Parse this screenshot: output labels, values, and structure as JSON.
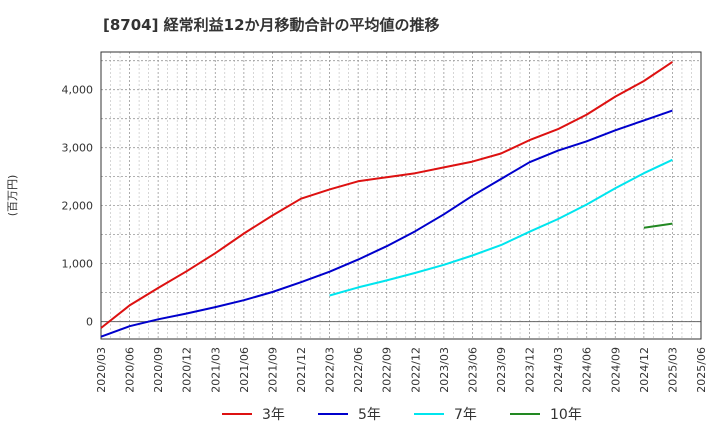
{
  "chart_data": {
    "type": "line",
    "title": "[8704]  経常利益12か月移動合計の平均値の推移",
    "ylabel": "(百万円)",
    "xlabel": "",
    "ylim": [
      -300,
      4650
    ],
    "yticks": [
      0,
      1000,
      2000,
      3000,
      4000
    ],
    "ytick_labels": [
      "0",
      "1,000",
      "2,000",
      "3,000",
      "4,000"
    ],
    "x": [
      "2020/03",
      "2020/06",
      "2020/09",
      "2020/12",
      "2021/03",
      "2021/06",
      "2021/09",
      "2021/12",
      "2022/03",
      "2022/06",
      "2022/09",
      "2022/12",
      "2023/03",
      "2023/06",
      "2023/09",
      "2023/12",
      "2024/03",
      "2024/06",
      "2024/09",
      "2024/12",
      "2025/03",
      "2025/06"
    ],
    "grid": true,
    "legend_position": "bottom",
    "series": [
      {
        "name": "3年",
        "color": "#dd1111",
        "values": [
          -110,
          280,
          580,
          870,
          1180,
          1520,
          1830,
          2120,
          2280,
          2420,
          2490,
          2560,
          2660,
          2760,
          2900,
          3130,
          3320,
          3570,
          3880,
          4150,
          4480,
          null
        ]
      },
      {
        "name": "5年",
        "color": "#0000cc",
        "values": [
          -260,
          -80,
          40,
          140,
          250,
          370,
          510,
          680,
          860,
          1070,
          1300,
          1560,
          1850,
          2170,
          2460,
          2750,
          2950,
          3110,
          3300,
          3470,
          3640,
          null
        ]
      },
      {
        "name": "7年",
        "color": "#00e5ee",
        "values": [
          null,
          null,
          null,
          null,
          null,
          null,
          null,
          null,
          450,
          590,
          710,
          840,
          980,
          1140,
          1320,
          1550,
          1770,
          2020,
          2300,
          2560,
          2790,
          null
        ]
      },
      {
        "name": "10年",
        "color": "#228822",
        "values": [
          null,
          null,
          null,
          null,
          null,
          null,
          null,
          null,
          null,
          null,
          null,
          null,
          null,
          null,
          null,
          null,
          null,
          null,
          null,
          1620,
          1690,
          null
        ]
      }
    ]
  }
}
